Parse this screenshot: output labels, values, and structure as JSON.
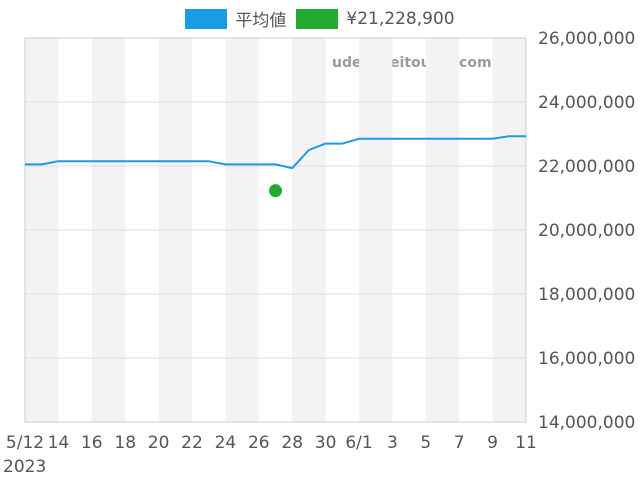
{
  "legend": {
    "items": [
      {
        "label": "平均値",
        "color": "#1a9be6"
      },
      {
        "label": "¥21,228,900",
        "color": "#22aa33"
      }
    ]
  },
  "watermark": "udedokeitoushi.com",
  "chart_data": {
    "type": "line",
    "x_tick_labels": [
      "5/12",
      "14",
      "16",
      "18",
      "20",
      "22",
      "24",
      "26",
      "28",
      "30",
      "6/1",
      "3",
      "5",
      "7",
      "9",
      "11"
    ],
    "year_label": "2023",
    "y_tick_labels": [
      "26,000,000",
      "24,000,000",
      "22,000,000",
      "20,000,000",
      "18,000,000",
      "16,000,000",
      "14,000,000"
    ],
    "ylim": [
      14000000,
      26000000
    ],
    "x_range_days": [
      0,
      30
    ],
    "grid": true,
    "alternating_bands": true,
    "legend_position": "top",
    "series": [
      {
        "name": "平均値",
        "color": "#1a9be6",
        "x_days": [
          0,
          1,
          2,
          3,
          4,
          5,
          6,
          7,
          8,
          9,
          10,
          11,
          12,
          13,
          14,
          15,
          16,
          17,
          18,
          19,
          20,
          21,
          22,
          23,
          24,
          25,
          26,
          27,
          28,
          29,
          30
        ],
        "values": [
          22050000,
          22050000,
          22150000,
          22150000,
          22150000,
          22150000,
          22150000,
          22150000,
          22150000,
          22150000,
          22150000,
          22150000,
          22050000,
          22050000,
          22050000,
          22050000,
          21930000,
          22500000,
          22700000,
          22700000,
          22850000,
          22850000,
          22850000,
          22850000,
          22850000,
          22850000,
          22850000,
          22850000,
          22850000,
          22930000,
          22930000
        ]
      },
      {
        "name": "¥21,228,900",
        "color": "#22aa33",
        "type": "scatter",
        "x_days": [
          15
        ],
        "values": [
          21228900
        ]
      }
    ]
  }
}
